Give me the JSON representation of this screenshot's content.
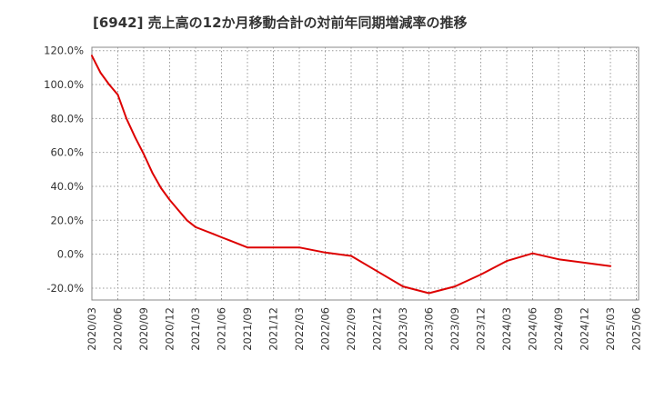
{
  "chart_data": {
    "type": "line",
    "title": "[6942]  売上高の12か月移動合計の対前年同期増減率の推移",
    "xlabel": "",
    "ylabel": "",
    "ylim": [
      -27,
      122
    ],
    "y_ticks": [
      -20,
      0,
      20,
      40,
      60,
      80,
      100,
      120
    ],
    "y_tick_labels": [
      "-20.0%",
      "0.0%",
      "20.0%",
      "40.0%",
      "60.0%",
      "80.0%",
      "100.0%",
      "120.0%"
    ],
    "x_tick_labels": [
      "2020/03",
      "2020/06",
      "2020/09",
      "2020/12",
      "2021/03",
      "2021/06",
      "2021/09",
      "2021/12",
      "2022/03",
      "2022/06",
      "2022/09",
      "2022/12",
      "2023/03",
      "2023/06",
      "2023/09",
      "2023/12",
      "2024/03",
      "2024/06",
      "2024/09",
      "2024/12",
      "2025/03",
      "2025/06"
    ],
    "grid": true,
    "series": [
      {
        "name": "売上高の12か月移動合計の対前年同期増減率",
        "color": "#dd0000",
        "x_index": [
          0,
          0.333,
          0.667,
          1,
          1.333,
          1.667,
          2,
          2.333,
          2.667,
          3,
          3.333,
          3.667,
          4,
          4.333,
          4.667,
          5,
          5.333,
          5.667,
          6,
          7,
          8,
          9,
          10,
          11,
          12,
          13,
          14,
          15,
          16,
          17,
          18,
          19,
          20
        ],
        "values": [
          117,
          107,
          100,
          94,
          80,
          69,
          59,
          48,
          39,
          32,
          26,
          20,
          16,
          14,
          12,
          10,
          8,
          6,
          4,
          4,
          4,
          1,
          -1,
          -10,
          -19,
          -23,
          -19,
          -12,
          -4,
          0.5,
          -3,
          -5,
          -7
        ]
      }
    ]
  }
}
